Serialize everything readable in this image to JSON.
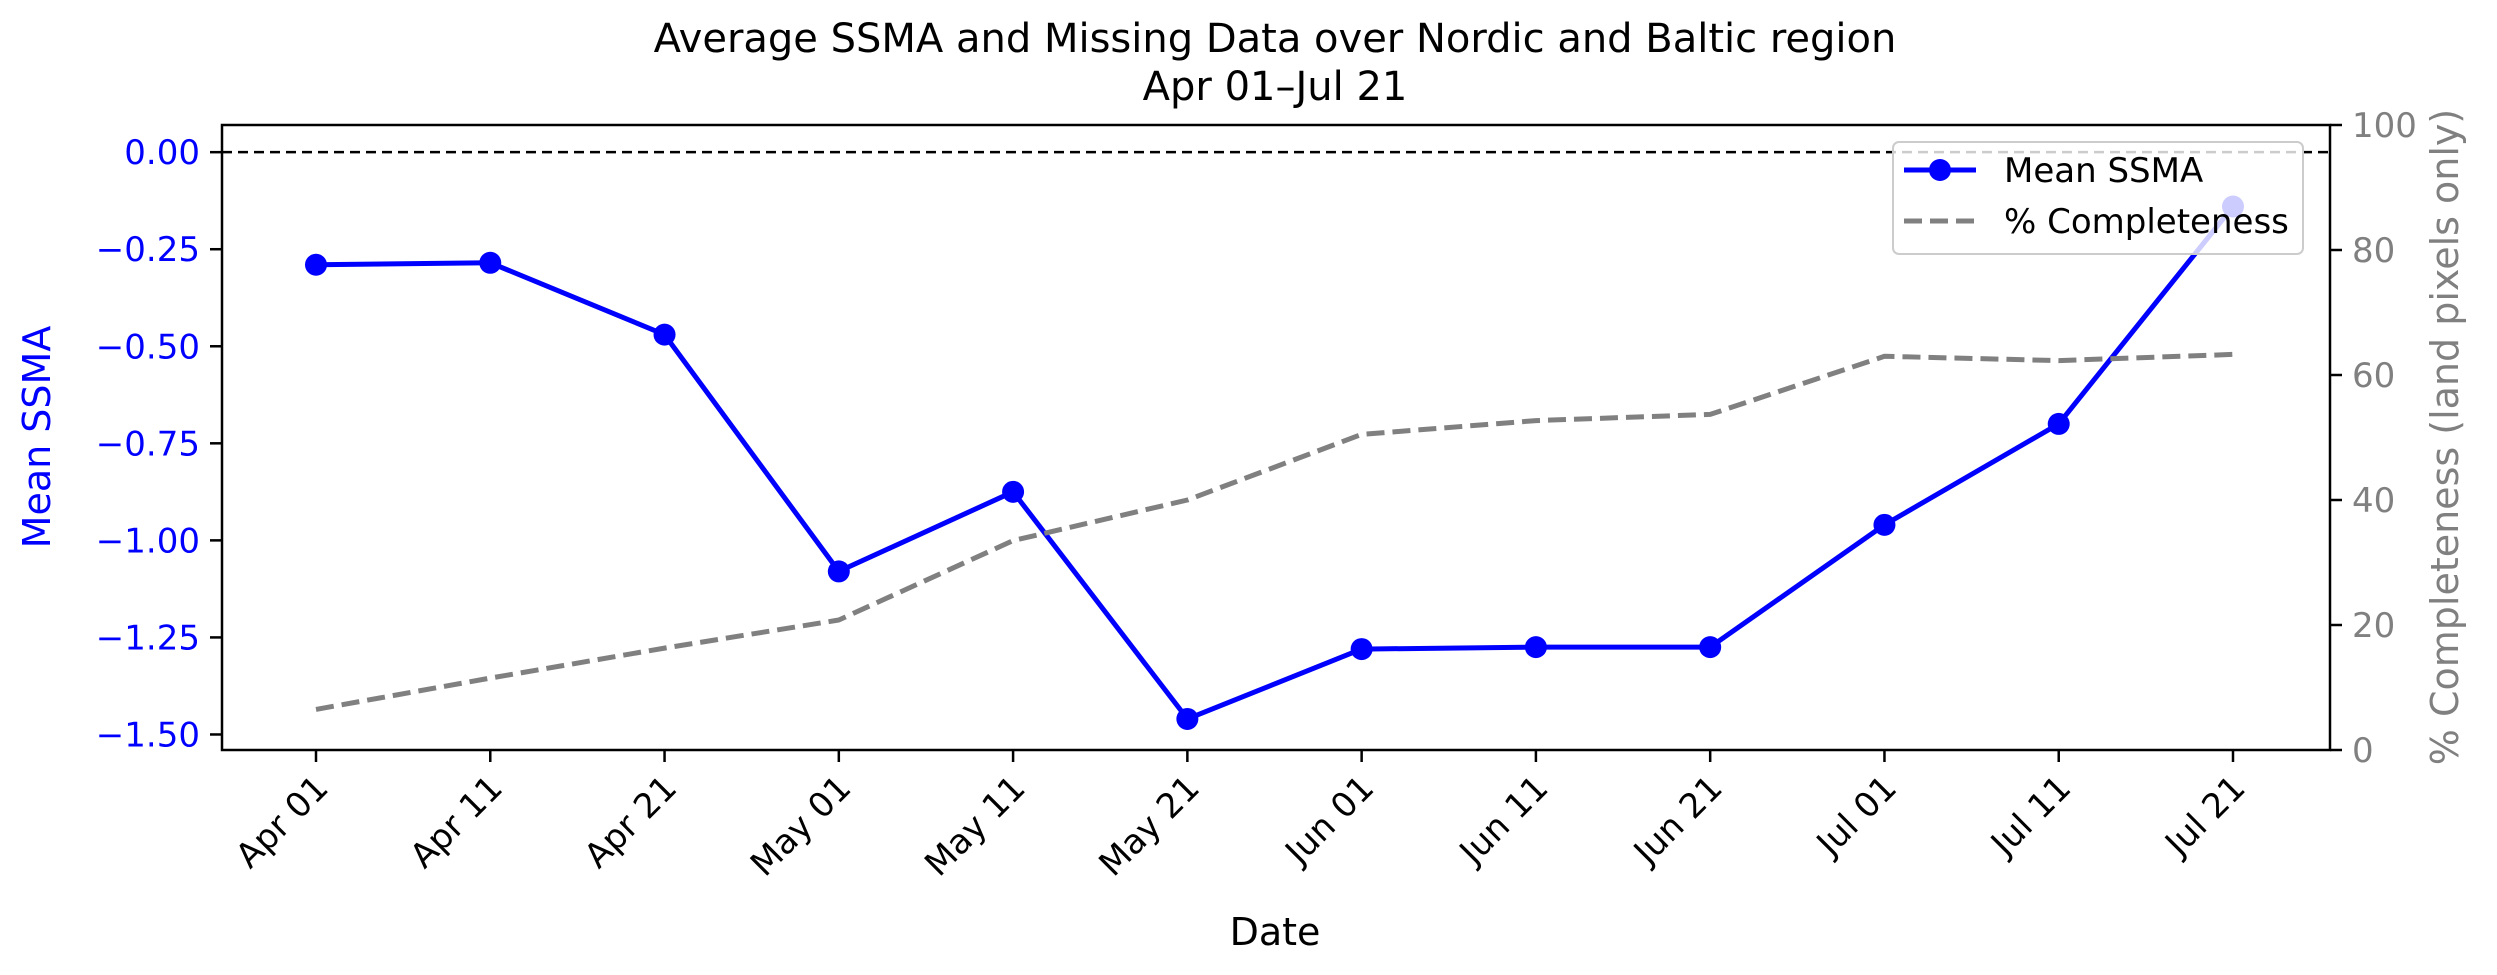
{
  "chart_data": {
    "type": "line",
    "title": "Average SSMA and Missing Data over Nordic and Baltic region",
    "subtitle": "Apr 01–Jul 21",
    "xlabel": "Date",
    "x": [
      "Apr 01",
      "Apr 11",
      "Apr 21",
      "May 01",
      "May 11",
      "May 21",
      "Jun 01",
      "Jun 11",
      "Jun 21",
      "Jul 01",
      "Jul 11",
      "Jul 21"
    ],
    "y_left": {
      "label": "Mean SSMA",
      "color": "#0000ff",
      "lim": [
        -1.54,
        0.07
      ],
      "ticks": [
        0.0,
        -0.25,
        -0.5,
        -0.75,
        -1.0,
        -1.25,
        -1.5
      ],
      "tick_labels": [
        "0.00",
        "−0.25",
        "−0.50",
        "−0.75",
        "−1.00",
        "−1.25",
        "−1.50"
      ]
    },
    "y_right": {
      "label": "% Completeness (land pixels only)",
      "color": "#808080",
      "lim": [
        0,
        100
      ],
      "ticks": [
        0,
        20,
        40,
        60,
        80,
        100
      ],
      "tick_labels": [
        "0",
        "20",
        "40",
        "60",
        "80",
        "100"
      ]
    },
    "reference_line": {
      "axis": "left",
      "y": 0.0,
      "style": "dashed",
      "color": "#000000"
    },
    "series": [
      {
        "name": "Mean SSMA",
        "axis": "left",
        "style": "solid",
        "marker": "circle",
        "color": "#0000ff",
        "values": [
          -0.29,
          -0.285,
          -0.47,
          -1.08,
          -0.875,
          -1.46,
          -1.28,
          -1.275,
          -1.275,
          -0.96,
          -0.7,
          -0.14
        ]
      },
      {
        "name": "% Completeness",
        "axis": "right",
        "style": "dashed",
        "marker": "none",
        "color": "#808080",
        "values": [
          6.5,
          11.5,
          16.3,
          20.8,
          33.5,
          40.0,
          50.5,
          52.7,
          53.7,
          63.0,
          62.3,
          63.3
        ]
      }
    ],
    "legend": {
      "placement": "upper right",
      "entries": [
        "Mean SSMA",
        "% Completeness"
      ]
    },
    "grid": false
  }
}
